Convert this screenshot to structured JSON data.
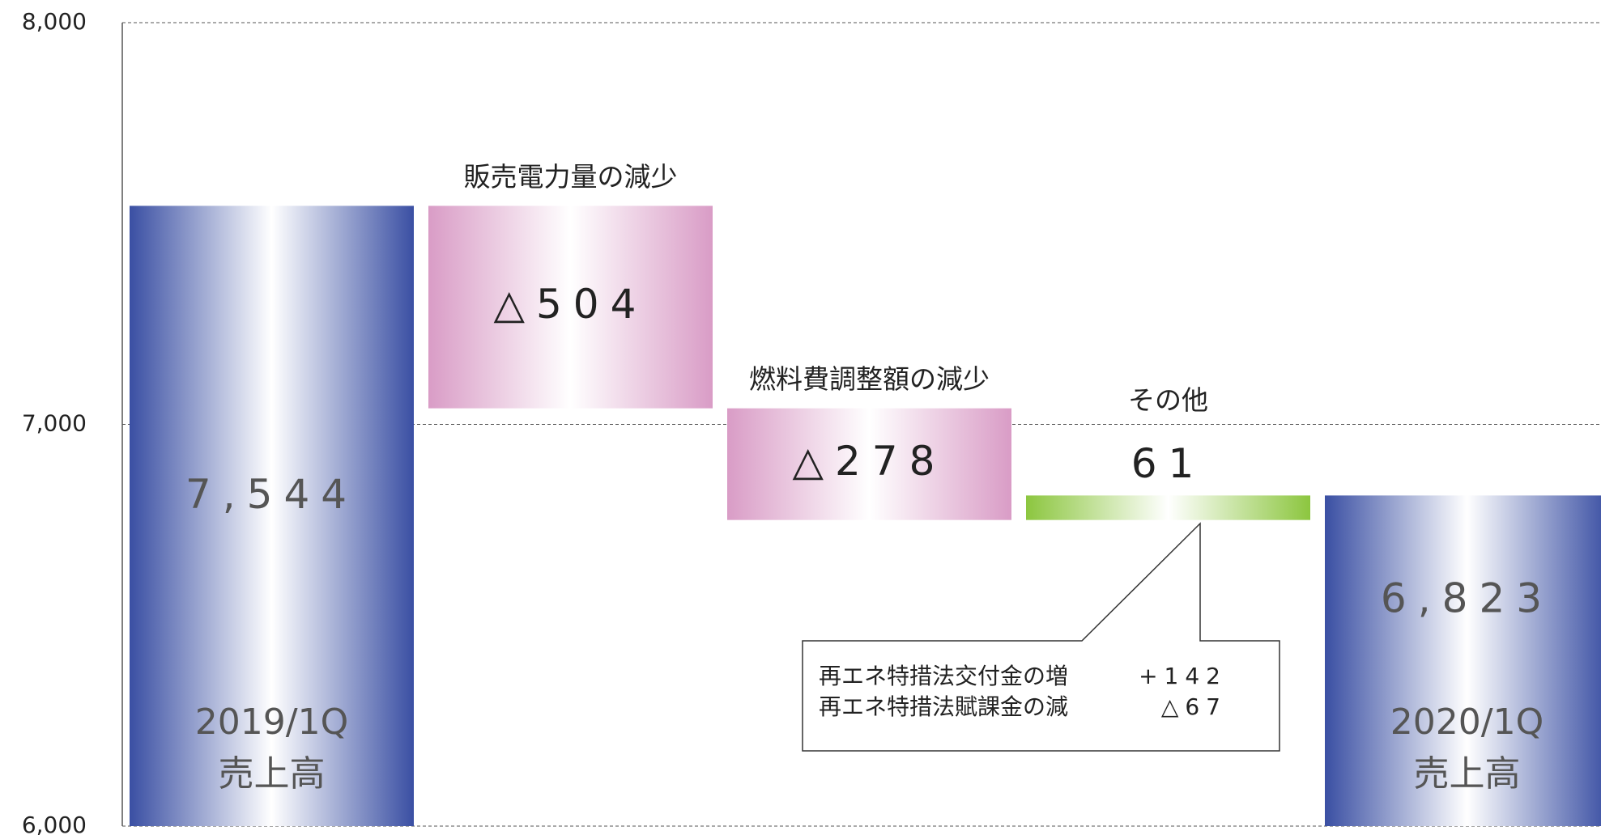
{
  "chart_data": {
    "type": "waterfall",
    "categories": [
      [
        "2019/1Q",
        "売上高"
      ],
      [
        "販売電力量の減少"
      ],
      [
        "燃料費調整額の減少"
      ],
      [
        "その他"
      ],
      [
        "2020/1Q",
        "売上高"
      ]
    ],
    "values": [
      7544,
      -504,
      -278,
      61,
      6823
    ],
    "value_labels": [
      "7,544",
      "△504",
      "△278",
      "61",
      "6,823"
    ],
    "measure": [
      "absolute",
      "relative",
      "relative",
      "relative",
      "absolute"
    ],
    "colors": [
      "#3a4fa3",
      "#d99cc6",
      "#d99cc6",
      "#8cc63f",
      "#3a4fa3"
    ],
    "ylim": [
      6000,
      8000
    ],
    "yticks": [
      {
        "value": 6000,
        "label": "6,000"
      },
      {
        "value": 7000,
        "label": "7,000"
      },
      {
        "value": 8000,
        "label": "8,000"
      }
    ],
    "grid": true,
    "annotation": {
      "lines": [
        {
          "label": "再エネ特措法交付金の増",
          "value": "+142"
        },
        {
          "label": "再エネ特措法賦課金の減",
          "value": "△67"
        }
      ]
    }
  }
}
